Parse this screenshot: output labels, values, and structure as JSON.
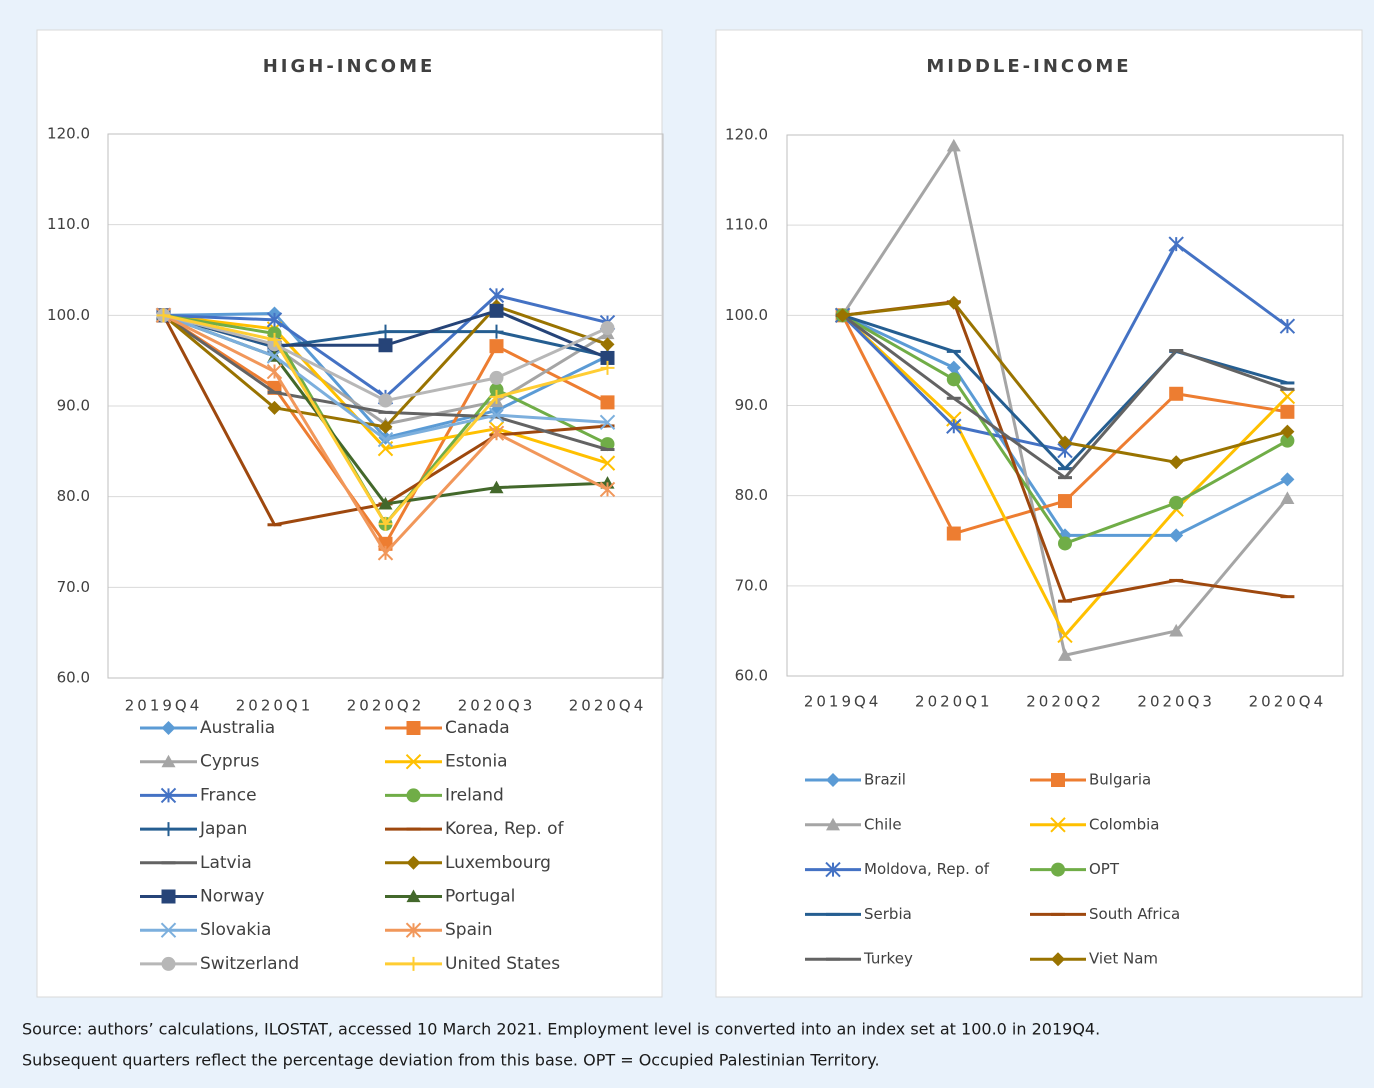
{
  "chart_data": [
    {
      "type": "line",
      "title": "HIGH-INCOME",
      "categories": [
        "2019Q4",
        "2020Q1",
        "2020Q2",
        "2020Q3",
        "2020Q4"
      ],
      "ylim": [
        60,
        120
      ],
      "yticks": [
        {
          "value": 60,
          "label": "60.0"
        },
        {
          "value": 70,
          "label": "70.0"
        },
        {
          "value": 80,
          "label": "80.0"
        },
        {
          "value": 90,
          "label": "90.0"
        },
        {
          "value": 100,
          "label": "100.0"
        },
        {
          "value": 110,
          "label": "110.0"
        },
        {
          "value": 120,
          "label": "120.0"
        }
      ],
      "grid": true,
      "legend": "bottom",
      "series": [
        {
          "name": "Australia",
          "color": "#5b9bd5",
          "marker": "diamond",
          "values": [
            100,
            100.2,
            86.5,
            89.5,
            95.5
          ]
        },
        {
          "name": "Canada",
          "color": "#ed7d31",
          "marker": "square",
          "values": [
            100,
            92.0,
            74.8,
            96.6,
            90.4
          ]
        },
        {
          "name": "Cyprus",
          "color": "#a5a5a5",
          "marker": "triangle",
          "values": [
            100,
            96.5,
            88.0,
            90.5,
            98.0
          ]
        },
        {
          "name": "Estonia",
          "color": "#ffc000",
          "marker": "x",
          "values": [
            100,
            98.5,
            85.3,
            87.5,
            83.7
          ]
        },
        {
          "name": "France",
          "color": "#4472c4",
          "marker": "star",
          "values": [
            100,
            99.5,
            91.0,
            102.2,
            99.2
          ]
        },
        {
          "name": "Ireland",
          "color": "#70ad47",
          "marker": "circle",
          "values": [
            100,
            98.0,
            77.0,
            91.8,
            85.8
          ]
        },
        {
          "name": "Japan",
          "color": "#255e91",
          "marker": "plus",
          "values": [
            100,
            96.5,
            98.2,
            98.2,
            95.5
          ]
        },
        {
          "name": "Korea, Rep. of",
          "color": "#9e480e",
          "marker": "dash",
          "values": [
            100,
            76.9,
            79.2,
            86.8,
            87.8
          ]
        },
        {
          "name": "Latvia",
          "color": "#636363",
          "marker": "dash",
          "values": [
            100,
            91.5,
            89.3,
            88.8,
            85.2
          ]
        },
        {
          "name": "Luxembourg",
          "color": "#997300",
          "marker": "diamond",
          "values": [
            100,
            89.8,
            87.7,
            101.0,
            96.8
          ]
        },
        {
          "name": "Norway",
          "color": "#264478",
          "marker": "square",
          "values": [
            100,
            96.7,
            96.7,
            100.5,
            95.3
          ]
        },
        {
          "name": "Portugal",
          "color": "#43682b",
          "marker": "triangle",
          "values": [
            100,
            95.5,
            79.2,
            81.0,
            81.5
          ]
        },
        {
          "name": "Slovakia",
          "color": "#7cafdd",
          "marker": "x",
          "values": [
            100,
            95.5,
            86.3,
            89.0,
            88.2
          ]
        },
        {
          "name": "Spain",
          "color": "#f1975a",
          "marker": "star",
          "values": [
            100,
            93.8,
            73.8,
            87.0,
            80.8
          ]
        },
        {
          "name": "Switzerland",
          "color": "#b7b7b7",
          "marker": "circle",
          "values": [
            100,
            96.8,
            90.6,
            93.1,
            98.6
          ]
        },
        {
          "name": "United States",
          "color": "#ffcd33",
          "marker": "plus",
          "values": [
            100,
            97.3,
            77.0,
            91.0,
            94.2
          ]
        }
      ]
    },
    {
      "type": "line",
      "title": "MIDDLE-INCOME",
      "categories": [
        "2019Q4",
        "2020Q1",
        "2020Q2",
        "2020Q3",
        "2020Q4"
      ],
      "ylim": [
        60,
        120
      ],
      "yticks": [
        {
          "value": 60,
          "label": "60.0"
        },
        {
          "value": 70,
          "label": "70.0"
        },
        {
          "value": 80,
          "label": "80.0"
        },
        {
          "value": 90,
          "label": "90.0"
        },
        {
          "value": 100,
          "label": "100.0"
        },
        {
          "value": 110,
          "label": "110.0"
        },
        {
          "value": 120,
          "label": "120.0"
        }
      ],
      "grid": true,
      "legend": "bottom",
      "series": [
        {
          "name": "Brazil",
          "color": "#5b9bd5",
          "marker": "diamond",
          "values": [
            100,
            94.2,
            75.6,
            75.6,
            81.8
          ]
        },
        {
          "name": "Bulgaria",
          "color": "#ed7d31",
          "marker": "square",
          "values": [
            100,
            75.8,
            79.4,
            91.3,
            89.3
          ]
        },
        {
          "name": "Chile",
          "color": "#a5a5a5",
          "marker": "triangle",
          "values": [
            100,
            118.8,
            62.3,
            65.0,
            79.7
          ]
        },
        {
          "name": "Colombia",
          "color": "#ffc000",
          "marker": "x",
          "values": [
            100,
            88.5,
            64.5,
            78.5,
            91.0
          ]
        },
        {
          "name": "Moldova, Rep. of",
          "color": "#4472c4",
          "marker": "star",
          "values": [
            100,
            87.7,
            85.0,
            107.9,
            98.8
          ]
        },
        {
          "name": "OPT",
          "color": "#70ad47",
          "marker": "circle",
          "values": [
            100,
            92.9,
            74.7,
            79.2,
            86.1
          ]
        },
        {
          "name": "Serbia",
          "color": "#255e91",
          "marker": "dash",
          "values": [
            100,
            96.0,
            83.0,
            96.0,
            92.5
          ]
        },
        {
          "name": "South Africa",
          "color": "#9e480e",
          "marker": "dash",
          "values": [
            100,
            101.5,
            68.3,
            70.6,
            68.8
          ]
        },
        {
          "name": "Turkey",
          "color": "#636363",
          "marker": "dash",
          "values": [
            100,
            90.8,
            82.0,
            96.1,
            91.8
          ]
        },
        {
          "name": "Viet Nam",
          "color": "#997300",
          "marker": "diamond",
          "values": [
            100,
            101.4,
            85.9,
            83.7,
            87.1
          ]
        }
      ]
    }
  ],
  "note": [
    "Source: authors’ calculations, ILOSTAT, accessed 10 March 2021. Employment level is converted into an index set at 100.0 in 2019Q4.",
    "Subsequent quarters reflect the percentage deviation from this base. OPT = Occupied Palestinian Territory."
  ]
}
